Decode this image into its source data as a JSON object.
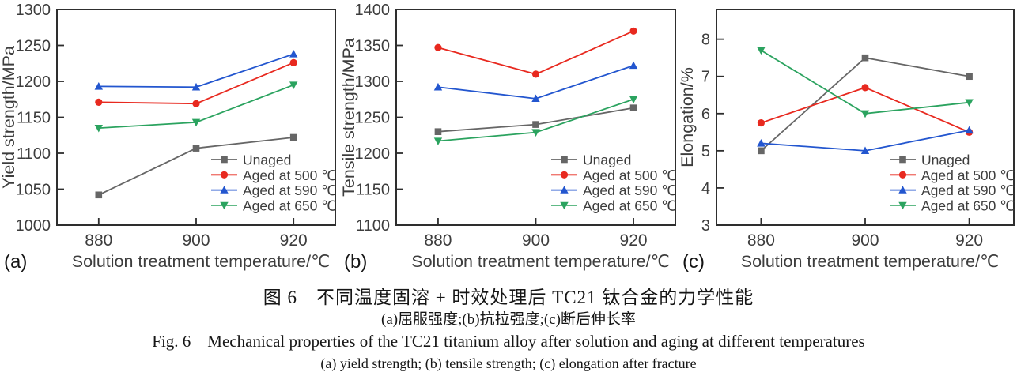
{
  "caption": {
    "zh_title": "图 6　不同温度固溶 + 时效处理后 TC21 钛合金的力学性能",
    "zh_subtitle": "(a)屈服强度;(b)抗拉强度;(c)断后伸长率",
    "en_title": "Fig. 6　Mechanical properties of the TC21 titanium alloy after solution and aging at different temperatures",
    "en_subtitle": "(a) yield strength; (b) tensile strength; (c) elongation after fracture"
  },
  "colors": {
    "unaged": "#666666",
    "aged_500": "#e8291f",
    "aged_590": "#2356cf",
    "aged_650": "#2ba35f",
    "axis_ink": "#2e2e2e",
    "label_ink": "#3d3d3d"
  },
  "chart_data": [
    {
      "type": "line",
      "panel_label": "(a)",
      "ylabel": "Yield strength/MPa",
      "xlabel": "Solution treatment temperature/℃",
      "x": [
        880,
        900,
        920
      ],
      "xticklabels": [
        "880",
        "900",
        "920"
      ],
      "ylim": [
        1000,
        1300
      ],
      "yticks": [
        1000,
        1050,
        1100,
        1150,
        1200,
        1250,
        1300
      ],
      "grid": false,
      "legend_position": "inside-bottom-right",
      "series": [
        {
          "name": "Unaged",
          "marker": "square",
          "color": "#666666",
          "values": [
            1042,
            1107,
            1122
          ]
        },
        {
          "name": "Aged at 500 ℃",
          "marker": "circle",
          "color": "#e8291f",
          "values": [
            1171,
            1169,
            1226
          ]
        },
        {
          "name": "Aged at 590 ℃",
          "marker": "triangle-up",
          "color": "#2356cf",
          "values": [
            1193,
            1192,
            1238
          ]
        },
        {
          "name": "Aged at 650 ℃",
          "marker": "triangle-down",
          "color": "#2ba35f",
          "values": [
            1135,
            1143,
            1195
          ]
        }
      ]
    },
    {
      "type": "line",
      "panel_label": "(b)",
      "ylabel": "Tensile strength/MPa",
      "xlabel": "Solution treatment temperature/℃",
      "x": [
        880,
        900,
        920
      ],
      "xticklabels": [
        "880",
        "900",
        "920"
      ],
      "ylim": [
        1100,
        1400
      ],
      "yticks": [
        1100,
        1150,
        1200,
        1250,
        1300,
        1350,
        1400
      ],
      "grid": false,
      "legend_position": "inside-bottom-right",
      "series": [
        {
          "name": "Unaged",
          "marker": "square",
          "color": "#666666",
          "values": [
            1230,
            1240,
            1263
          ]
        },
        {
          "name": "Aged at 500 ℃",
          "marker": "circle",
          "color": "#e8291f",
          "values": [
            1347,
            1310,
            1370
          ]
        },
        {
          "name": "Aged at 590 ℃",
          "marker": "triangle-up",
          "color": "#2356cf",
          "values": [
            1292,
            1276,
            1322
          ]
        },
        {
          "name": "Aged at 650 ℃",
          "marker": "triangle-down",
          "color": "#2ba35f",
          "values": [
            1217,
            1229,
            1275
          ]
        }
      ]
    },
    {
      "type": "line",
      "panel_label": "(c)",
      "ylabel": "Elongation/%",
      "xlabel": "Solution treatment temperature/℃",
      "x": [
        880,
        900,
        920
      ],
      "xticklabels": [
        "880",
        "900",
        "920"
      ],
      "ylim": [
        3,
        8.8
      ],
      "yticks": [
        3,
        4,
        5,
        6,
        7,
        8
      ],
      "grid": false,
      "legend_position": "inside-bottom-right",
      "series": [
        {
          "name": "Unaged",
          "marker": "square",
          "color": "#666666",
          "values": [
            5.0,
            7.5,
            7.0
          ]
        },
        {
          "name": "Aged at 500 ℃",
          "marker": "circle",
          "color": "#e8291f",
          "values": [
            5.75,
            6.7,
            5.5
          ]
        },
        {
          "name": "Aged at 590 ℃",
          "marker": "triangle-up",
          "color": "#2356cf",
          "values": [
            5.2,
            5.0,
            5.55
          ]
        },
        {
          "name": "Aged at 650 ℃",
          "marker": "triangle-down",
          "color": "#2ba35f",
          "values": [
            7.7,
            6.0,
            6.3
          ]
        }
      ]
    }
  ]
}
